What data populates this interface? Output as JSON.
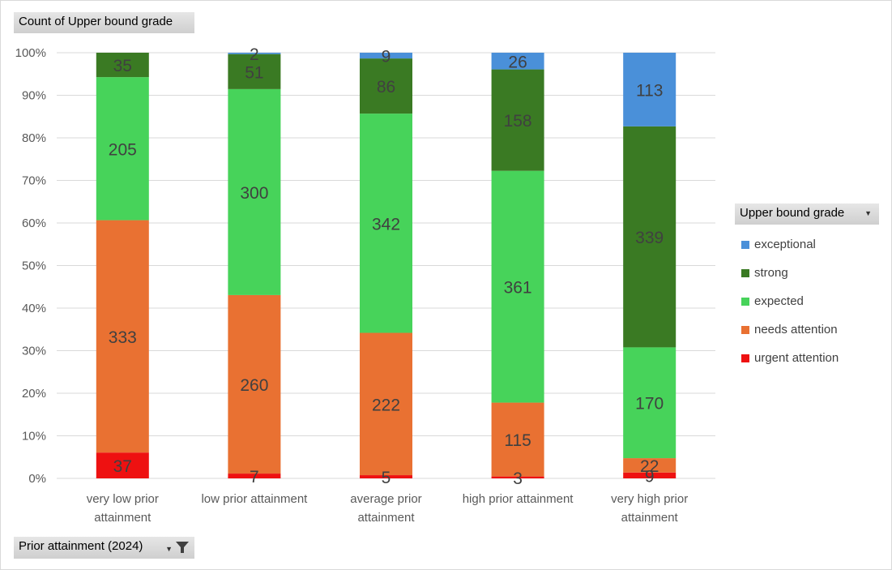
{
  "header": {
    "value_field": "Count of Upper bound grade",
    "legend_field": "Upper bound grade",
    "axis_field": "Prior attainment (2024)"
  },
  "legend_entries": [
    {
      "label": "exceptional",
      "color": "#4a90d9"
    },
    {
      "label": "strong",
      "color": "#3a7a23"
    },
    {
      "label": "expected",
      "color": "#47d35a"
    },
    {
      "label": "needs attention",
      "color": "#e97132"
    },
    {
      "label": "urgent attention",
      "color": "#ee1111"
    }
  ],
  "icons": {
    "legend_dropdown": "dropdown-caret-icon",
    "axis_dropdown": "dropdown-caret-icon",
    "axis_filter": "filter-icon"
  },
  "chart_data": {
    "type": "bar",
    "stacked": "percent",
    "categories": [
      [
        "very low prior",
        "attainment"
      ],
      [
        "low prior attainment"
      ],
      [
        "average prior",
        "attainment"
      ],
      [
        "high prior attainment"
      ],
      [
        "very high prior",
        "attainment"
      ]
    ],
    "series": [
      {
        "name": "urgent attention",
        "color": "#ee1111",
        "values": [
          37,
          7,
          5,
          3,
          9
        ]
      },
      {
        "name": "needs attention",
        "color": "#e97132",
        "values": [
          333,
          260,
          222,
          115,
          22
        ]
      },
      {
        "name": "expected",
        "color": "#47d35a",
        "values": [
          205,
          300,
          342,
          361,
          170
        ]
      },
      {
        "name": "strong",
        "color": "#3a7a23",
        "values": [
          35,
          51,
          86,
          158,
          339
        ]
      },
      {
        "name": "exceptional",
        "color": "#4a90d9",
        "values": [
          0,
          2,
          9,
          26,
          113
        ]
      }
    ],
    "y_ticks": [
      "0%",
      "10%",
      "20%",
      "30%",
      "40%",
      "50%",
      "60%",
      "70%",
      "80%",
      "90%",
      "100%"
    ],
    "ylim": [
      0,
      100
    ],
    "grid": true,
    "legend_position": "right"
  }
}
